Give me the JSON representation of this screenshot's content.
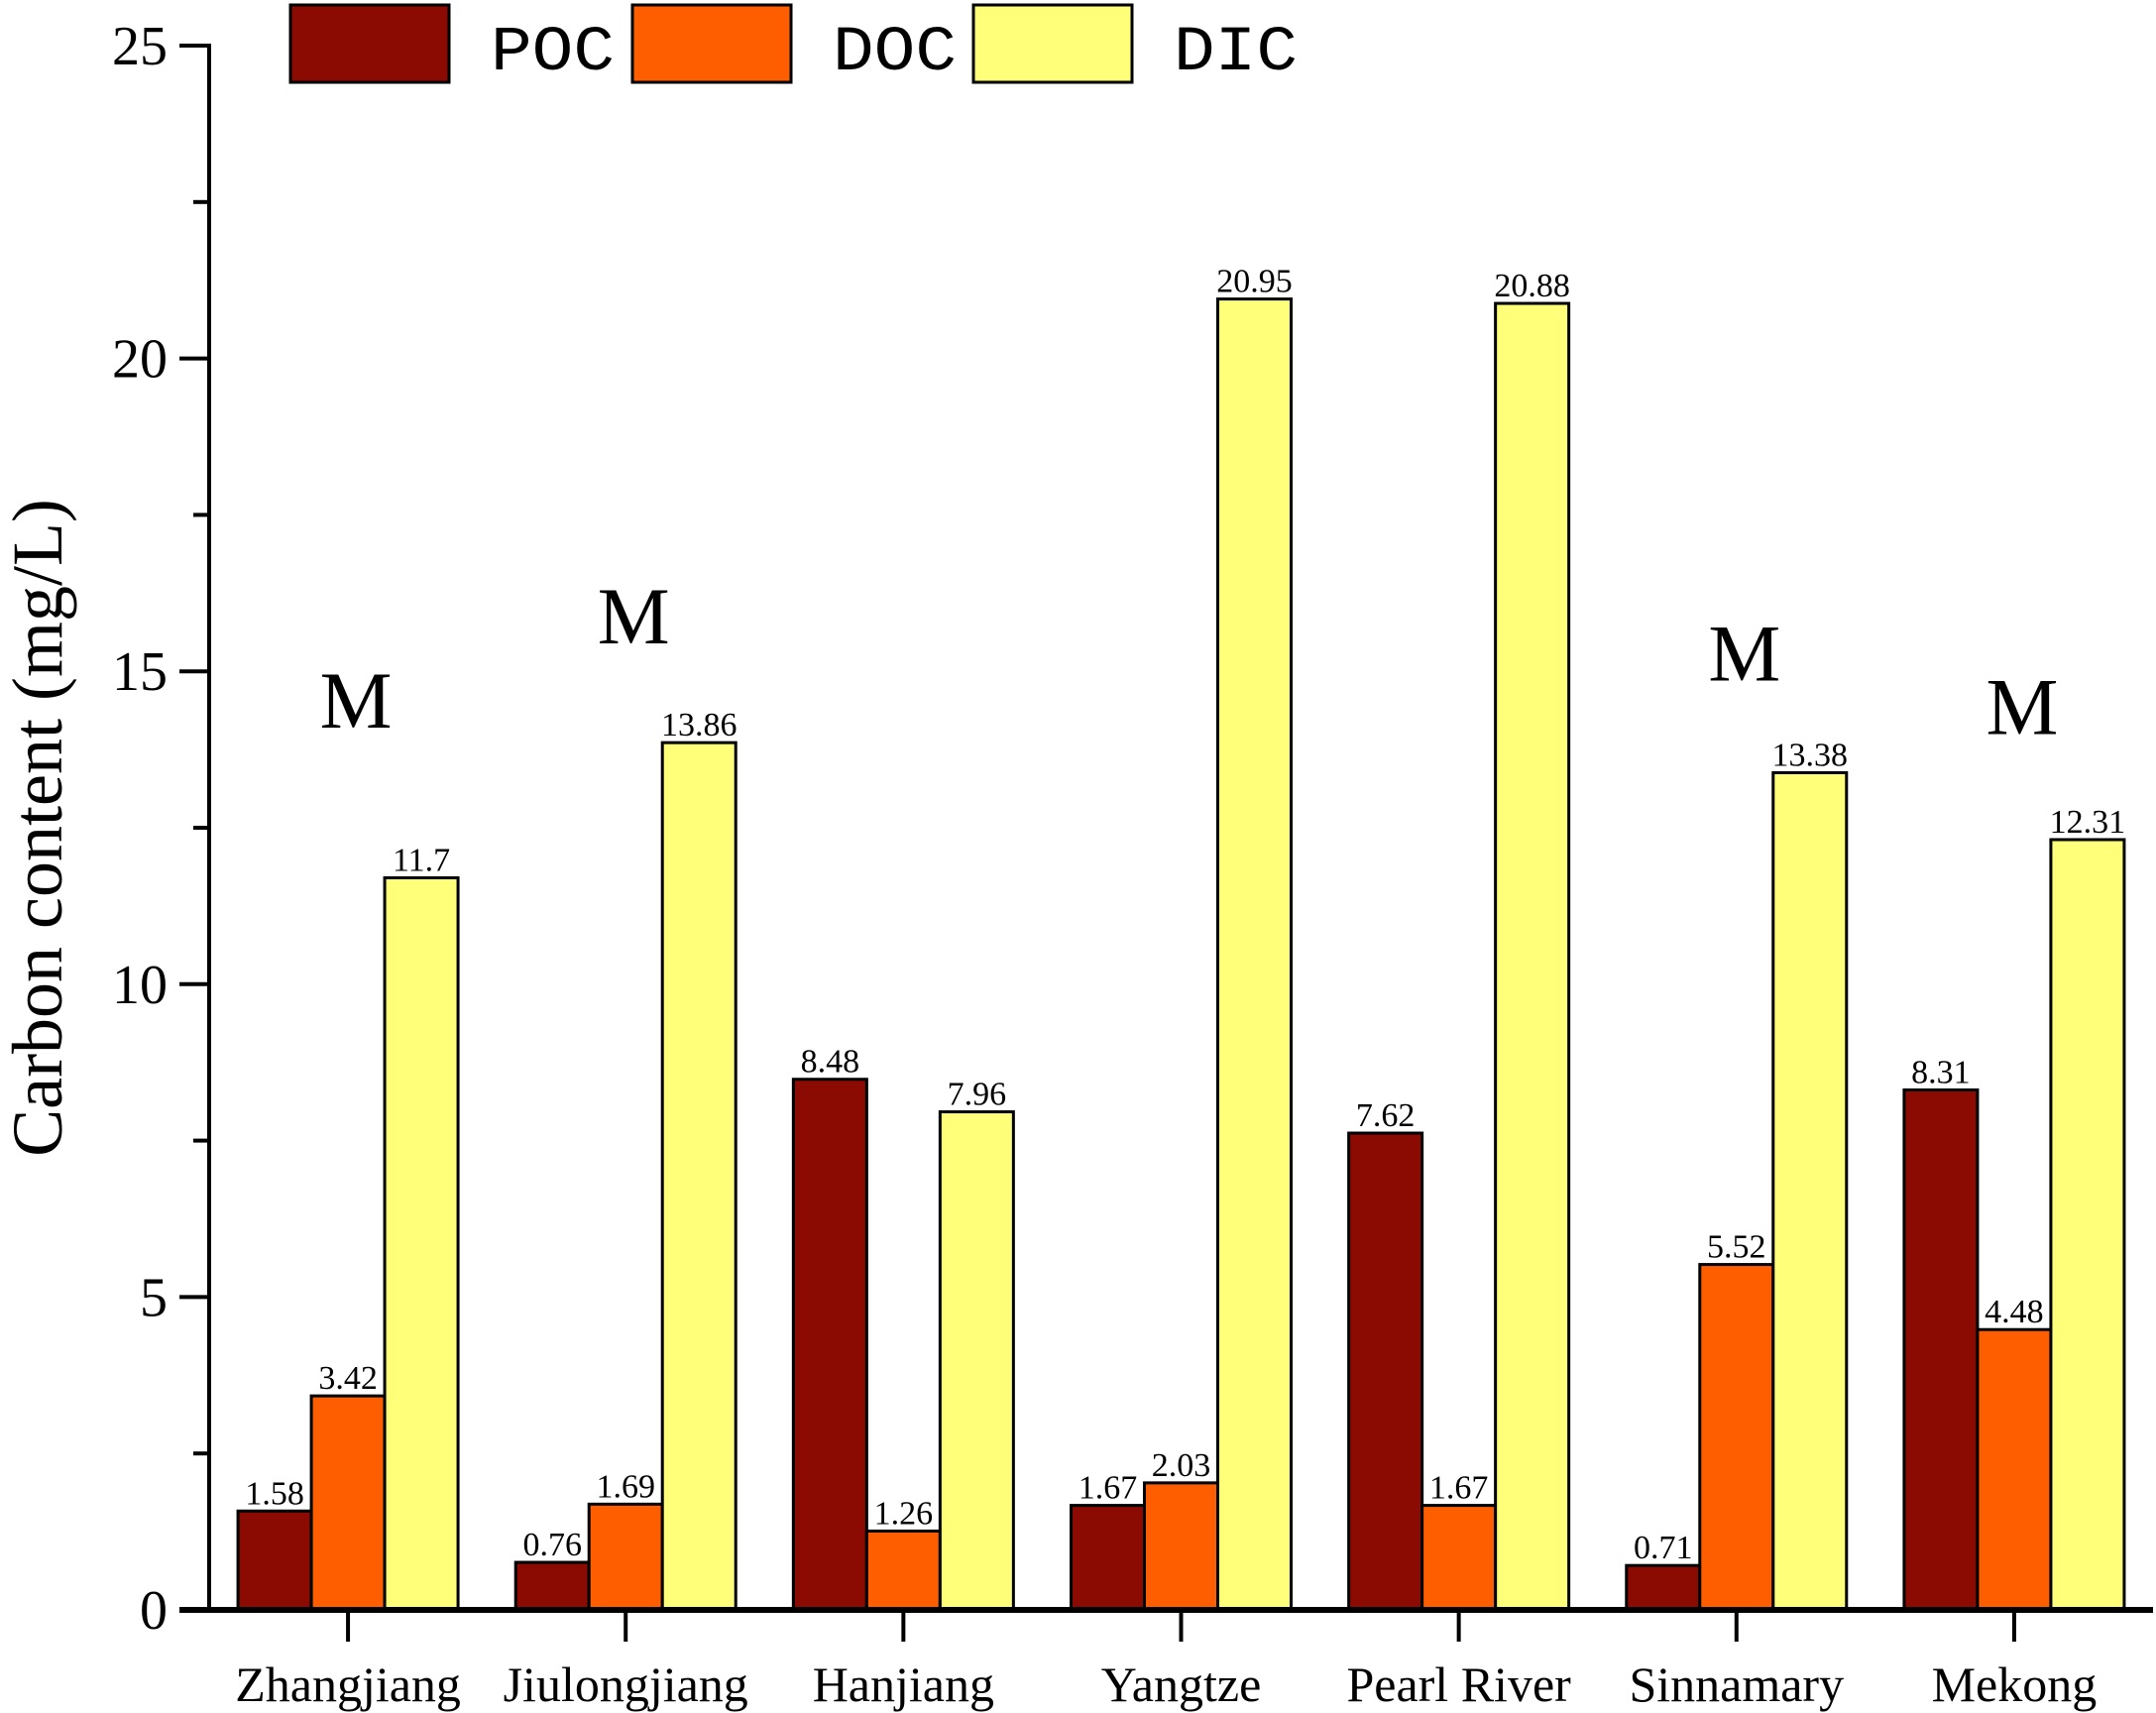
{
  "chart_data": {
    "type": "bar",
    "title": "",
    "xlabel": "",
    "ylabel": "Carbon content (mg/L)",
    "ylim": [
      0,
      25
    ],
    "yticks": [
      "0",
      "5",
      "10",
      "15",
      "20",
      "25"
    ],
    "categories": [
      "Zhangjiang",
      "Jiulongjiang",
      "Hanjiang",
      "Yangtze",
      "Pearl River",
      "Sinnamary",
      "Mekong"
    ],
    "series": [
      {
        "name": "POC",
        "color": "#8B0A02",
        "values": [
          1.58,
          0.76,
          8.48,
          1.67,
          7.62,
          0.71,
          8.31
        ],
        "labels": [
          "1.58",
          "0.76",
          "8.48",
          "1.67",
          "7.62",
          "0.71",
          "8.31"
        ]
      },
      {
        "name": "DOC",
        "color": "#FF5E00",
        "values": [
          3.42,
          1.69,
          1.26,
          2.03,
          1.67,
          5.52,
          4.48
        ],
        "labels": [
          "3.42",
          "1.69",
          "1.26",
          "2.03",
          "1.67",
          "5.52",
          "4.48"
        ]
      },
      {
        "name": "DIC",
        "color": "#FFFF7A",
        "values": [
          11.7,
          13.86,
          7.96,
          20.95,
          20.88,
          13.38,
          12.31
        ],
        "labels": [
          "11.7",
          "13.86",
          "7.96",
          "20.95",
          "20.88",
          "13.38",
          "12.31"
        ]
      }
    ],
    "annotations": [
      {
        "text": "M",
        "category": "Zhangjiang",
        "y": 14.1
      },
      {
        "text": "M",
        "category": "Jiulongjiang",
        "y": 15.45
      },
      {
        "text": "M",
        "category": "Sinnamary",
        "y": 14.85
      },
      {
        "text": "M",
        "category": "Mekong",
        "y": 14.0
      }
    ],
    "legend": {
      "placement": "top",
      "entries": [
        "POC",
        "DOC",
        "DIC"
      ]
    },
    "grid": false
  }
}
